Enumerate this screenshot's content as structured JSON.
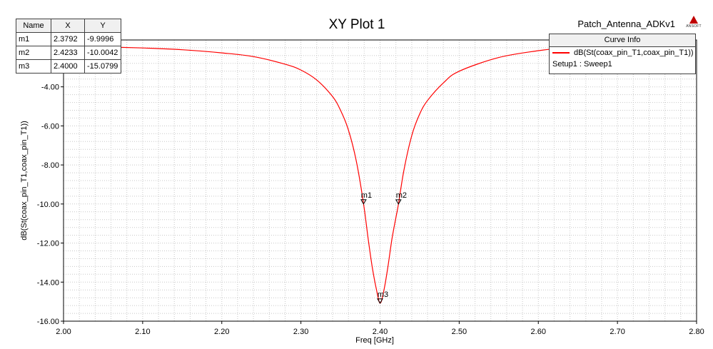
{
  "project_name": "Patch_Antenna_ADKv1",
  "logo_text": "ANSOFT",
  "marker_table": {
    "headers": [
      "Name",
      "X",
      "Y"
    ],
    "rows": [
      {
        "name": "m1",
        "x": "2.3792",
        "y": "-9.9996"
      },
      {
        "name": "m2",
        "x": "2.4233",
        "y": "-10.0042"
      },
      {
        "name": "m3",
        "x": "2.4000",
        "y": "-15.0799"
      }
    ]
  },
  "curve_info": {
    "header": "Curve Info",
    "trace": "dB(St(coax_pin_T1,coax_pin_T1))",
    "setup": "Setup1 : Sweep1",
    "color": "#ff0000"
  },
  "chart_data": {
    "type": "line",
    "title": "XY Plot 1",
    "xlabel": "Freq [GHz]",
    "ylabel": "dB(St(coax_pin_T1,coax_pin_T1))",
    "xlim": [
      2.0,
      2.8
    ],
    "ylim": [
      -16.0,
      -1.6
    ],
    "x_ticks": [
      2.0,
      2.1,
      2.2,
      2.3,
      2.4,
      2.5,
      2.6,
      2.7,
      2.8
    ],
    "x_tick_labels": [
      "2.00",
      "2.10",
      "2.20",
      "2.30",
      "2.40",
      "2.50",
      "2.60",
      "2.70",
      "2.80"
    ],
    "y_ticks": [
      -4.0,
      -6.0,
      -8.0,
      -10.0,
      -12.0,
      -14.0,
      -16.0
    ],
    "y_tick_labels": [
      "-4.00",
      "-6.00",
      "-8.00",
      "-10.00",
      "-12.00",
      "-14.00",
      "-16.00"
    ],
    "grid": true,
    "legend": "top-right",
    "series": [
      {
        "name": "dB(St(coax_pin_T1,coax_pin_T1))",
        "color": "#ff0000",
        "x": [
          2.0,
          2.05,
          2.1,
          2.15,
          2.2,
          2.24,
          2.28,
          2.3,
          2.32,
          2.34,
          2.35,
          2.36,
          2.37,
          2.3792,
          2.385,
          2.39,
          2.395,
          2.4,
          2.405,
          2.41,
          2.415,
          2.42,
          2.4233,
          2.43,
          2.44,
          2.45,
          2.46,
          2.48,
          2.5,
          2.55,
          2.6,
          2.65
        ],
        "y": [
          -1.91,
          -1.95,
          -2.01,
          -2.1,
          -2.26,
          -2.45,
          -2.84,
          -3.14,
          -3.65,
          -4.5,
          -5.2,
          -6.2,
          -7.8,
          -10.0,
          -11.8,
          -13.2,
          -14.3,
          -15.08,
          -14.4,
          -13.2,
          -11.8,
          -10.7,
          -10.0,
          -8.3,
          -6.5,
          -5.4,
          -4.7,
          -3.8,
          -3.2,
          -2.5,
          -2.15,
          -1.92
        ]
      }
    ],
    "markers": [
      {
        "name": "m1",
        "x": 2.3792,
        "y": -9.9996
      },
      {
        "name": "m2",
        "x": 2.4233,
        "y": -10.0042
      },
      {
        "name": "m3",
        "x": 2.4,
        "y": -15.0799
      }
    ]
  }
}
